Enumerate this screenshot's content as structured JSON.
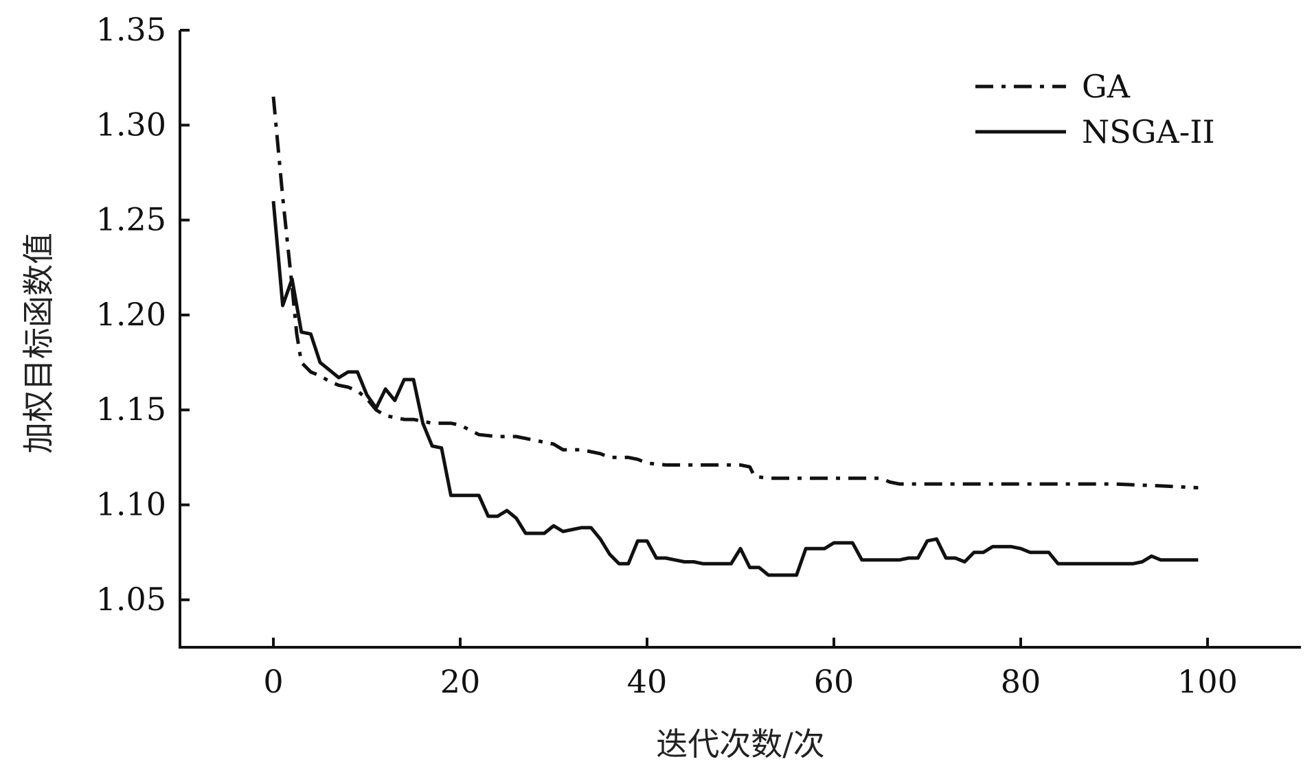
{
  "chart_data": {
    "type": "line",
    "title": "",
    "xlabel": "迭代次数/次",
    "ylabel": "加权目标函数值",
    "xlim": [
      -10,
      110
    ],
    "ylim": [
      1.025,
      1.35
    ],
    "xticks": [
      0,
      20,
      40,
      60,
      80,
      100
    ],
    "xtick_labels": [
      "0",
      "20",
      "40",
      "60",
      "80",
      "100"
    ],
    "yticks": [
      1.05,
      1.1,
      1.15,
      1.2,
      1.25,
      1.3,
      1.35
    ],
    "ytick_labels": [
      "1.05",
      "1.10",
      "1.15",
      "1.20",
      "1.25",
      "1.30",
      "1.35"
    ],
    "grid": false,
    "legend_position": "top-right",
    "series": [
      {
        "name": "GA",
        "style": "dash-dot",
        "color": "#111111",
        "points": [
          [
            0,
            1.315
          ],
          [
            1,
            1.262
          ],
          [
            2,
            1.215
          ],
          [
            2.5,
            1.19
          ],
          [
            3,
            1.175
          ],
          [
            4,
            1.17
          ],
          [
            5,
            1.168
          ],
          [
            6,
            1.165
          ],
          [
            7,
            1.163
          ],
          [
            8,
            1.162
          ],
          [
            9,
            1.16
          ],
          [
            10,
            1.156
          ],
          [
            11,
            1.15
          ],
          [
            12,
            1.147
          ],
          [
            13,
            1.146
          ],
          [
            14,
            1.145
          ],
          [
            15,
            1.145
          ],
          [
            16,
            1.144
          ],
          [
            17,
            1.143
          ],
          [
            18,
            1.143
          ],
          [
            19,
            1.143
          ],
          [
            20,
            1.142
          ],
          [
            22,
            1.137
          ],
          [
            24,
            1.136
          ],
          [
            26,
            1.136
          ],
          [
            28,
            1.134
          ],
          [
            30,
            1.132
          ],
          [
            31,
            1.129
          ],
          [
            33,
            1.129
          ],
          [
            35,
            1.127
          ],
          [
            36,
            1.125
          ],
          [
            38,
            1.125
          ],
          [
            39,
            1.124
          ],
          [
            40,
            1.122
          ],
          [
            42,
            1.121
          ],
          [
            45,
            1.121
          ],
          [
            48,
            1.121
          ],
          [
            50,
            1.121
          ],
          [
            51,
            1.12
          ],
          [
            51.5,
            1.115
          ],
          [
            53,
            1.114
          ],
          [
            56,
            1.114
          ],
          [
            60,
            1.114
          ],
          [
            63,
            1.114
          ],
          [
            65,
            1.114
          ],
          [
            66,
            1.112
          ],
          [
            67,
            1.111
          ],
          [
            70,
            1.111
          ],
          [
            75,
            1.111
          ],
          [
            80,
            1.111
          ],
          [
            85,
            1.111
          ],
          [
            90,
            1.111
          ],
          [
            95,
            1.11
          ],
          [
            99,
            1.109
          ]
        ]
      },
      {
        "name": "NSGA-II",
        "style": "solid",
        "color": "#111111",
        "points": [
          [
            0,
            1.26
          ],
          [
            1,
            1.205
          ],
          [
            2,
            1.219
          ],
          [
            3,
            1.191
          ],
          [
            4,
            1.19
          ],
          [
            5,
            1.175
          ],
          [
            6,
            1.171
          ],
          [
            7,
            1.167
          ],
          [
            8,
            1.17
          ],
          [
            9,
            1.17
          ],
          [
            10,
            1.158
          ],
          [
            11,
            1.151
          ],
          [
            12,
            1.161
          ],
          [
            13,
            1.155
          ],
          [
            14,
            1.166
          ],
          [
            15,
            1.166
          ],
          [
            16,
            1.143
          ],
          [
            17,
            1.131
          ],
          [
            18,
            1.13
          ],
          [
            19,
            1.105
          ],
          [
            20,
            1.105
          ],
          [
            21,
            1.105
          ],
          [
            22,
            1.105
          ],
          [
            23,
            1.094
          ],
          [
            24,
            1.094
          ],
          [
            25,
            1.097
          ],
          [
            26,
            1.093
          ],
          [
            27,
            1.085
          ],
          [
            28,
            1.085
          ],
          [
            29,
            1.085
          ],
          [
            30,
            1.089
          ],
          [
            31,
            1.086
          ],
          [
            32,
            1.087
          ],
          [
            33,
            1.088
          ],
          [
            34,
            1.088
          ],
          [
            35,
            1.082
          ],
          [
            36,
            1.074
          ],
          [
            37,
            1.069
          ],
          [
            38,
            1.069
          ],
          [
            39,
            1.081
          ],
          [
            40,
            1.081
          ],
          [
            41,
            1.072
          ],
          [
            42,
            1.072
          ],
          [
            43,
            1.071
          ],
          [
            44,
            1.07
          ],
          [
            45,
            1.07
          ],
          [
            46,
            1.069
          ],
          [
            47,
            1.069
          ],
          [
            48,
            1.069
          ],
          [
            49,
            1.069
          ],
          [
            50,
            1.077
          ],
          [
            51,
            1.067
          ],
          [
            52,
            1.067
          ],
          [
            53,
            1.063
          ],
          [
            54,
            1.063
          ],
          [
            55,
            1.063
          ],
          [
            56,
            1.063
          ],
          [
            57,
            1.077
          ],
          [
            58,
            1.077
          ],
          [
            59,
            1.077
          ],
          [
            60,
            1.08
          ],
          [
            61,
            1.08
          ],
          [
            62,
            1.08
          ],
          [
            63,
            1.071
          ],
          [
            64,
            1.071
          ],
          [
            65,
            1.071
          ],
          [
            66,
            1.071
          ],
          [
            67,
            1.071
          ],
          [
            68,
            1.072
          ],
          [
            69,
            1.072
          ],
          [
            70,
            1.081
          ],
          [
            71,
            1.082
          ],
          [
            72,
            1.072
          ],
          [
            73,
            1.072
          ],
          [
            74,
            1.07
          ],
          [
            75,
            1.075
          ],
          [
            76,
            1.075
          ],
          [
            77,
            1.078
          ],
          [
            78,
            1.078
          ],
          [
            79,
            1.078
          ],
          [
            80,
            1.077
          ],
          [
            81,
            1.075
          ],
          [
            82,
            1.075
          ],
          [
            83,
            1.075
          ],
          [
            84,
            1.069
          ],
          [
            85,
            1.069
          ],
          [
            86,
            1.069
          ],
          [
            87,
            1.069
          ],
          [
            88,
            1.069
          ],
          [
            89,
            1.069
          ],
          [
            90,
            1.069
          ],
          [
            91,
            1.069
          ],
          [
            92,
            1.069
          ],
          [
            93,
            1.07
          ],
          [
            94,
            1.073
          ],
          [
            95,
            1.071
          ],
          [
            96,
            1.071
          ],
          [
            97,
            1.071
          ],
          [
            98,
            1.071
          ],
          [
            99,
            1.071
          ]
        ]
      }
    ]
  }
}
